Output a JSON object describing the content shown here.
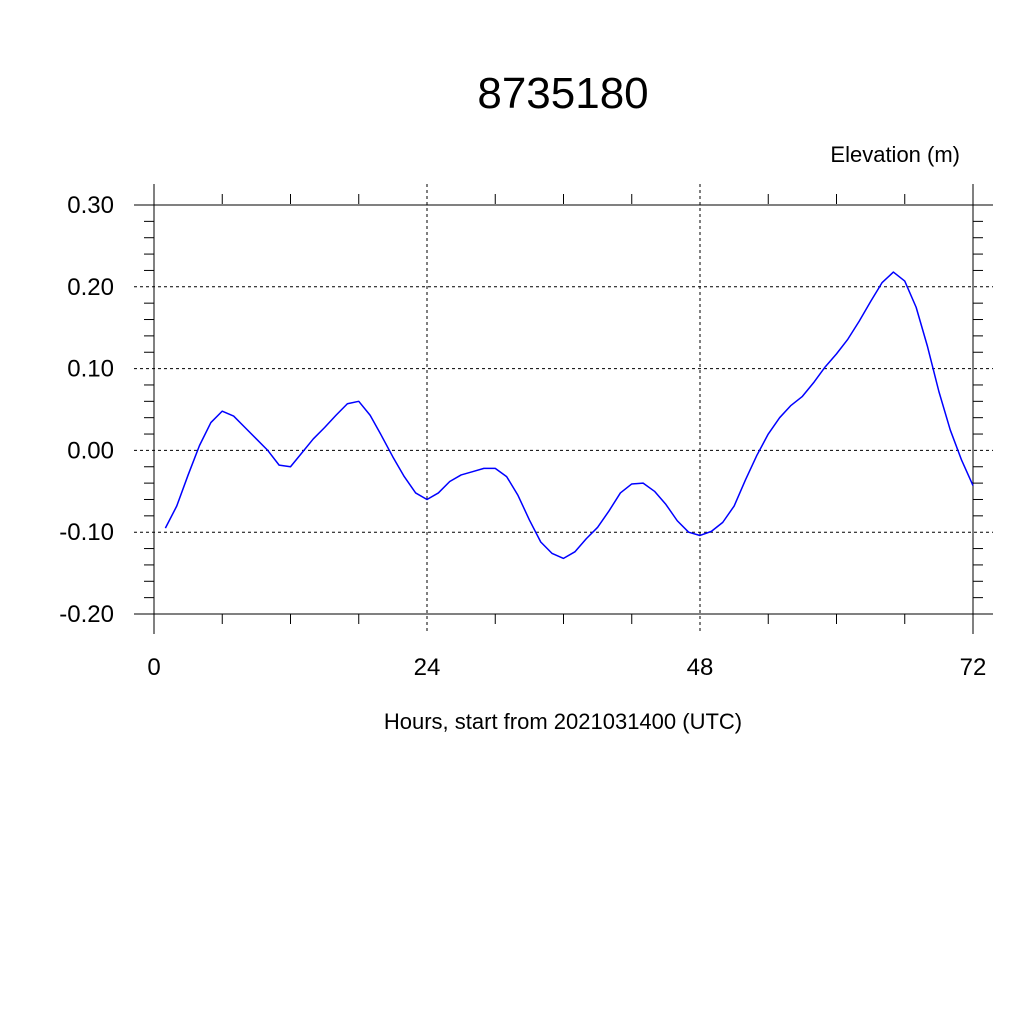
{
  "chart_data": {
    "type": "line",
    "title": "8735180",
    "ylabel": "Elevation (m)",
    "xlabel": "Hours, start from 2021031400 (UTC)",
    "xlim": [
      0,
      72
    ],
    "ylim": [
      -0.2,
      0.3
    ],
    "x_ticks": [
      0,
      24,
      48,
      72
    ],
    "x_tick_labels": [
      "0",
      "24",
      "48",
      "72"
    ],
    "y_ticks": [
      0.3,
      0.2,
      0.1,
      0.0,
      -0.1,
      -0.2
    ],
    "y_tick_labels": [
      "0.30",
      "0.20",
      "0.10",
      "0.00",
      "-0.10",
      "-0.20"
    ],
    "grid": true,
    "series": [
      {
        "color": "#0000ff",
        "x": [
          1,
          2,
          3,
          4,
          5,
          6,
          7,
          8,
          9,
          10,
          11,
          12,
          13,
          14,
          15,
          16,
          17,
          18,
          19,
          20,
          21,
          22,
          23,
          24,
          25,
          26,
          27,
          28,
          29,
          30,
          31,
          32,
          33,
          34,
          35,
          36,
          37,
          38,
          39,
          40,
          41,
          42,
          43,
          44,
          45,
          46,
          47,
          48,
          49,
          50,
          51,
          52,
          53,
          54,
          55,
          56,
          57,
          58,
          59,
          60,
          61,
          62,
          63,
          64,
          65,
          66,
          67,
          68,
          69,
          70,
          71,
          72
        ],
        "values": [
          -0.095,
          -0.068,
          -0.03,
          0.006,
          0.034,
          0.048,
          0.042,
          0.028,
          0.014,
          0.0,
          -0.018,
          -0.02,
          -0.003,
          0.014,
          0.028,
          0.043,
          0.057,
          0.06,
          0.043,
          0.018,
          -0.008,
          -0.032,
          -0.052,
          -0.06,
          -0.052,
          -0.038,
          -0.03,
          -0.026,
          -0.022,
          -0.022,
          -0.032,
          -0.055,
          -0.085,
          -0.112,
          -0.126,
          -0.132,
          -0.124,
          -0.108,
          -0.094,
          -0.074,
          -0.052,
          -0.041,
          -0.04,
          -0.05,
          -0.066,
          -0.086,
          -0.1,
          -0.104,
          -0.099,
          -0.088,
          -0.068,
          -0.036,
          -0.006,
          0.02,
          0.04,
          0.055,
          0.066,
          0.083,
          0.102,
          0.118,
          0.136,
          0.158,
          0.182,
          0.205,
          0.218,
          0.207,
          0.175,
          0.127,
          0.072,
          0.025,
          -0.012,
          -0.043
        ]
      }
    ]
  }
}
